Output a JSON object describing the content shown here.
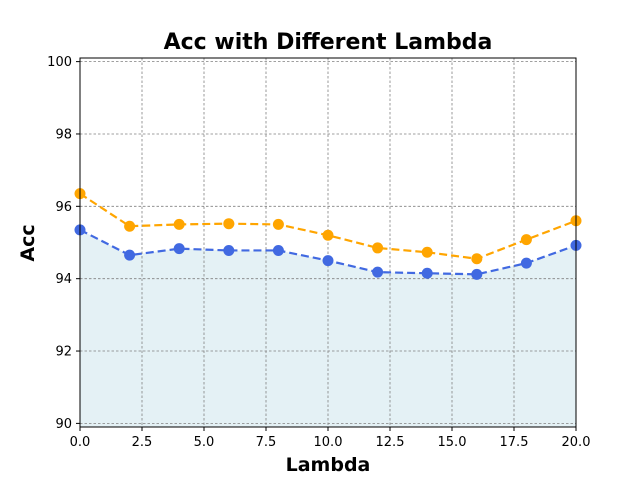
{
  "chart_data": {
    "type": "line",
    "title": "Acc with Different Lambda",
    "xlabel": "Lambda",
    "ylabel": "Acc",
    "xlim": [
      0,
      20
    ],
    "ylim": [
      89.9,
      100.1
    ],
    "x": [
      0,
      2,
      4,
      6,
      8,
      10,
      12,
      14,
      16,
      18,
      20
    ],
    "x_tick_labels": [
      "0.0",
      "2.5",
      "5.0",
      "7.5",
      "10.0",
      "12.5",
      "15.0",
      "17.5",
      "20.0"
    ],
    "x_tick_values": [
      0,
      2.5,
      5,
      7.5,
      10,
      12.5,
      15,
      17.5,
      20
    ],
    "y_tick_labels": [
      "90",
      "92",
      "94",
      "96",
      "98",
      "100"
    ],
    "y_tick_values": [
      90,
      92,
      94,
      96,
      98,
      100
    ],
    "grid": true,
    "series": [
      {
        "color": "#FFA500",
        "style": "dashed",
        "marker": "circle",
        "values": [
          96.35,
          95.45,
          95.5,
          95.52,
          95.5,
          95.2,
          94.85,
          94.73,
          94.55,
          95.08,
          95.6
        ]
      },
      {
        "color": "#4169E1",
        "style": "dashed",
        "marker": "circle",
        "fill": "#E4F1F5",
        "values": [
          95.35,
          94.65,
          94.83,
          94.78,
          94.78,
          94.5,
          94.18,
          94.15,
          94.12,
          94.43,
          94.92
        ]
      }
    ]
  }
}
